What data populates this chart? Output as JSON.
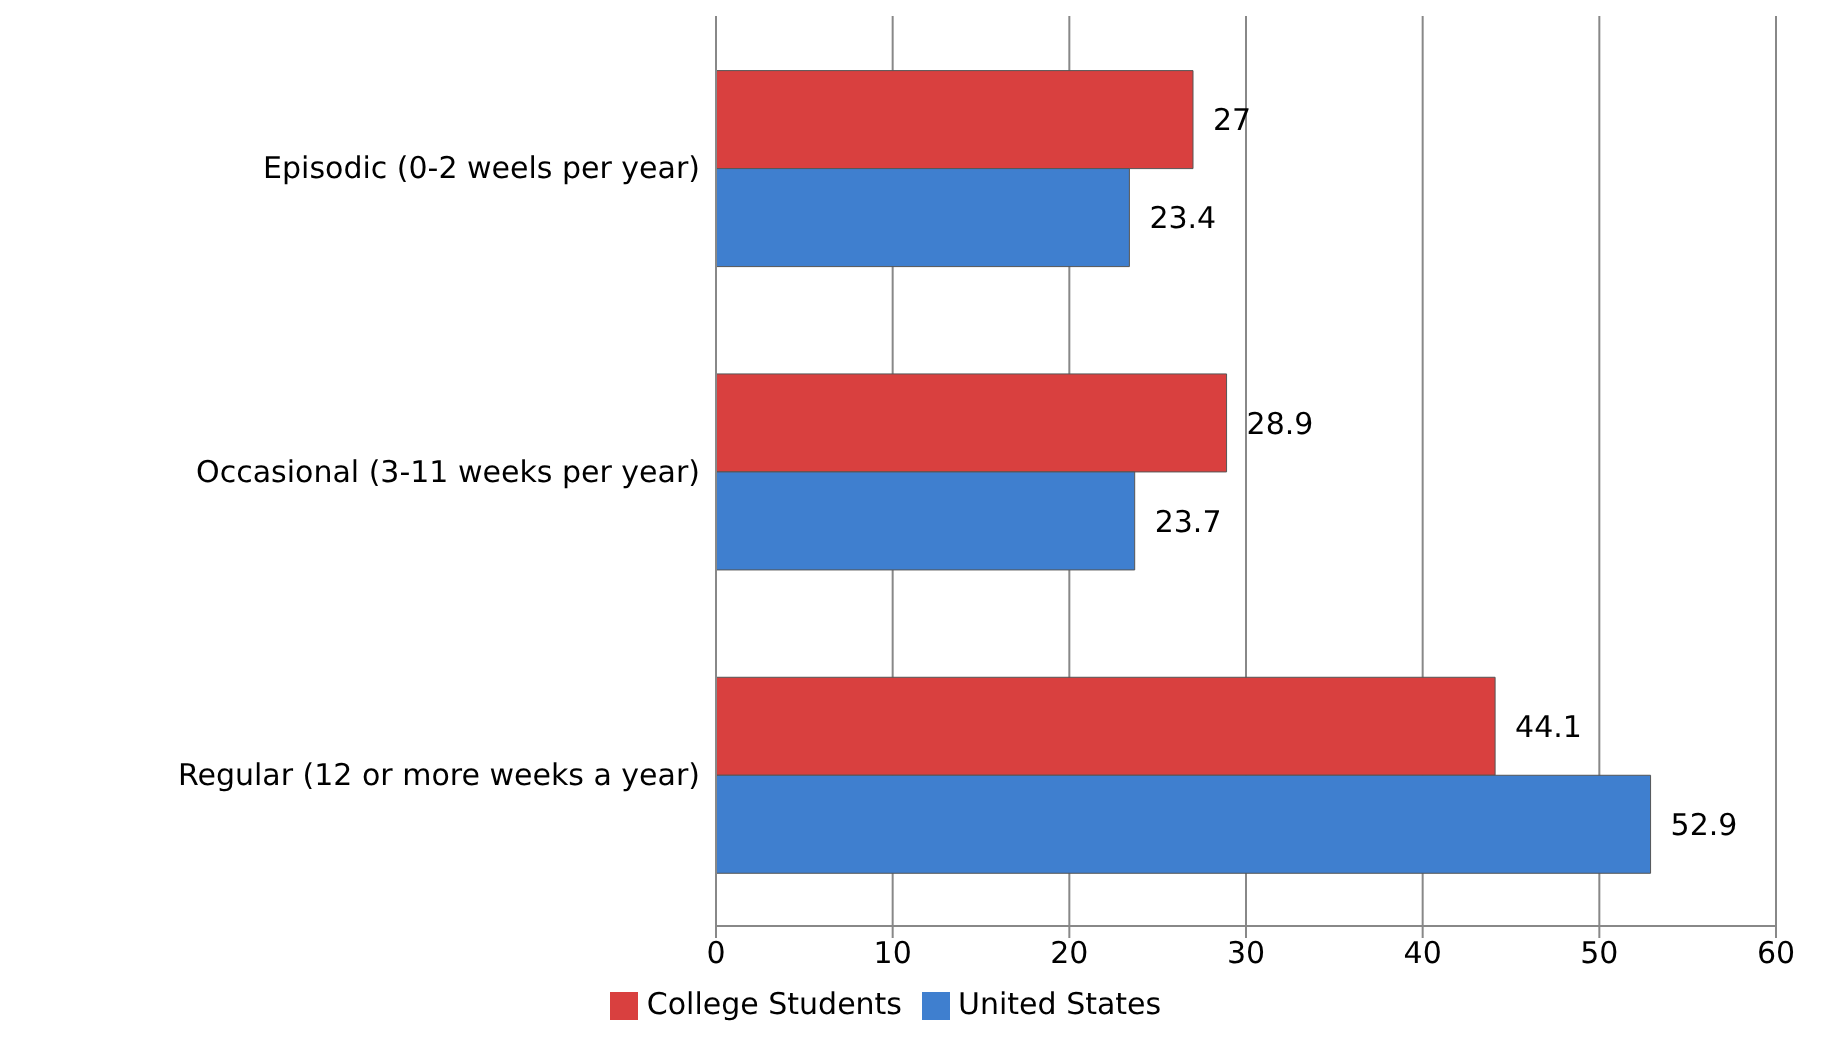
{
  "chart_data": {
    "type": "bar",
    "orientation": "horizontal",
    "categories": [
      "Episodic (0-2 weels per year)",
      "Occasional (3-11 weeks per year)",
      "Regular (12 or more weeks a year)"
    ],
    "series": [
      {
        "name": "College Students",
        "color": "#d9403f",
        "values": [
          27,
          28.9,
          44.1
        ]
      },
      {
        "name": "United States",
        "color": "#3f7fcf",
        "values": [
          23.4,
          23.7,
          52.9
        ]
      }
    ],
    "xlim": [
      0,
      60
    ],
    "xticks": [
      0,
      10,
      20,
      30,
      40,
      50,
      60
    ],
    "grid": "x",
    "legend": "bottom",
    "data_labels": true
  }
}
